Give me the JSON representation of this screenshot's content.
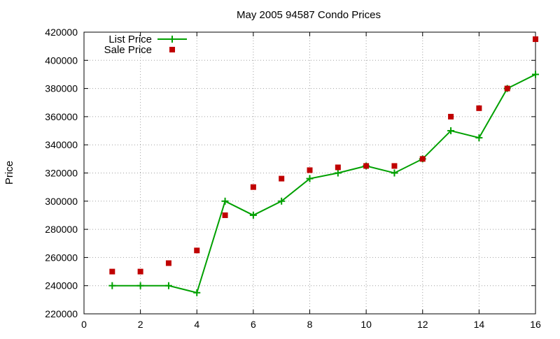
{
  "chart_data": {
    "type": "line",
    "title": "May 2005 94587 Condo Prices",
    "xlabel": "",
    "ylabel": "Price",
    "xlim": [
      0,
      16
    ],
    "ylim": [
      220000,
      420000
    ],
    "xticks": [
      0,
      2,
      4,
      6,
      8,
      10,
      12,
      14,
      16
    ],
    "yticks": [
      220000,
      240000,
      260000,
      280000,
      300000,
      320000,
      340000,
      360000,
      380000,
      400000,
      420000
    ],
    "grid": true,
    "legend_position": "top-left",
    "series": [
      {
        "name": "List Price",
        "style": "linespoints",
        "marker": "plus",
        "color": "#00a000",
        "x": [
          1,
          2,
          3,
          4,
          5,
          6,
          7,
          8,
          9,
          10,
          11,
          12,
          13,
          14,
          15,
          16
        ],
        "y": [
          240000,
          240000,
          240000,
          235000,
          300000,
          290000,
          300000,
          316000,
          320000,
          325000,
          320000,
          330000,
          350000,
          345000,
          380000,
          390000
        ]
      },
      {
        "name": "Sale Price",
        "style": "points",
        "marker": "square",
        "color": "#c00000",
        "x": [
          1,
          2,
          3,
          4,
          5,
          6,
          7,
          8,
          9,
          10,
          11,
          12,
          13,
          14,
          15,
          16
        ],
        "y": [
          250000,
          250000,
          256000,
          265000,
          290000,
          310000,
          316000,
          322000,
          324000,
          325000,
          325000,
          330000,
          360000,
          366000,
          380000,
          415000
        ]
      }
    ]
  }
}
